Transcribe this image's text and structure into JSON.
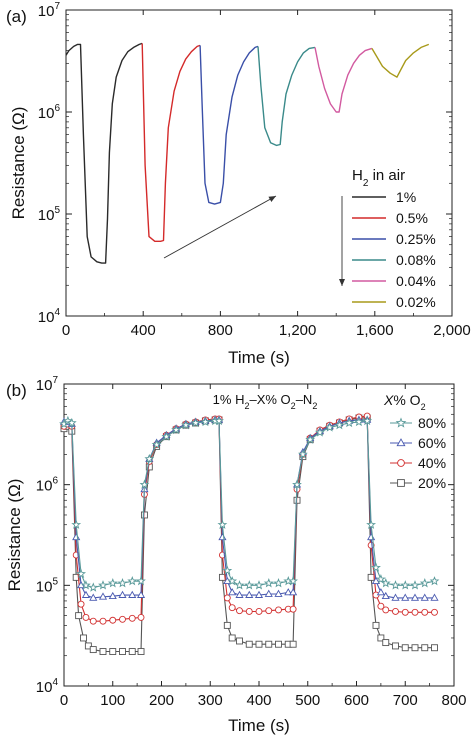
{
  "figure": {
    "background": "#ffffff",
    "text_color": "#111111"
  },
  "chart_data": [
    {
      "type": "line",
      "panel_label": "(a)",
      "xlabel": "Time (s)",
      "ylabel": "Resistance (Ω)",
      "xlim": [
        0,
        2000
      ],
      "ylim": [
        10000,
        10000000
      ],
      "yscale": "log",
      "x_ticks": [
        0,
        400,
        800,
        1200,
        1600,
        2000
      ],
      "x_tick_labels": [
        "0",
        "400",
        "800",
        "1,200",
        "1,600",
        "2,000"
      ],
      "y_ticks": [
        10000,
        100000,
        1000000,
        10000000
      ],
      "y_tick_labels": [
        {
          "base": "10",
          "exp": "4"
        },
        {
          "base": "10",
          "exp": "5"
        },
        {
          "base": "10",
          "exp": "6"
        },
        {
          "base": "10",
          "exp": "7"
        }
      ],
      "legend": {
        "title_parts": [
          "H",
          "2",
          " in air"
        ],
        "placement": "right",
        "arrow": "down"
      },
      "annotation": "diagonal arrow pointing up-right from t≈480 s to t≈1160 s",
      "series": [
        {
          "name": "1%",
          "color": "#2a2a2a",
          "x": [
            0,
            15,
            40,
            60,
            75,
            90,
            110,
            130,
            160,
            185,
            205,
            215,
            225,
            240,
            260,
            290,
            320,
            350,
            380,
            395
          ],
          "y": [
            3600000,
            4000000,
            4400000,
            4600000,
            4600000,
            600000,
            60000,
            38000,
            34000,
            33000,
            33000,
            90000,
            400000,
            1200000,
            2200000,
            3200000,
            3900000,
            4300000,
            4600000,
            4700000
          ]
        },
        {
          "name": "0.5%",
          "color": "#d42a2a",
          "x": [
            395,
            410,
            430,
            460,
            490,
            505,
            515,
            530,
            560,
            590,
            620,
            650,
            680,
            695
          ],
          "y": [
            4700000,
            300000,
            60000,
            54000,
            54000,
            55000,
            200000,
            700000,
            1600000,
            2500000,
            3300000,
            3900000,
            4400000,
            4500000
          ]
        },
        {
          "name": "0.25%",
          "color": "#3a4fa8",
          "x": [
            695,
            705,
            720,
            740,
            770,
            800,
            815,
            830,
            860,
            890,
            920,
            950,
            980,
            995
          ],
          "y": [
            4500000,
            1200000,
            200000,
            130000,
            125000,
            130000,
            200000,
            600000,
            1400000,
            2300000,
            3100000,
            3800000,
            4300000,
            4400000
          ]
        },
        {
          "name": "0.08%",
          "color": "#3a8a8a",
          "x": [
            995,
            1010,
            1030,
            1060,
            1090,
            1110,
            1120,
            1140,
            1170,
            1200,
            1230,
            1260,
            1290
          ],
          "y": [
            4400000,
            1800000,
            700000,
            500000,
            470000,
            480000,
            800000,
            1500000,
            2300000,
            3100000,
            3800000,
            4200000,
            4300000
          ]
        },
        {
          "name": "0.04%",
          "color": "#d25aa0",
          "x": [
            1290,
            1310,
            1340,
            1370,
            1400,
            1415,
            1430,
            1460,
            1490,
            1520,
            1550,
            1585
          ],
          "y": [
            4300000,
            2800000,
            1700000,
            1200000,
            1000000,
            1000000,
            1500000,
            2300000,
            3000000,
            3600000,
            4000000,
            4200000
          ]
        },
        {
          "name": "0.02%",
          "color": "#a89a1a",
          "x": [
            1585,
            1610,
            1640,
            1680,
            1715,
            1730,
            1760,
            1800,
            1840,
            1880
          ],
          "y": [
            4200000,
            3500000,
            2800000,
            2400000,
            2200000,
            2500000,
            3200000,
            3800000,
            4300000,
            4600000
          ]
        }
      ]
    },
    {
      "type": "line",
      "panel_label": "(b)",
      "xlabel": "Time (s)",
      "ylabel": "Resistance (Ω)",
      "xlim": [
        0,
        800
      ],
      "ylim": [
        10000,
        10000000
      ],
      "yscale": "log",
      "x_ticks": [
        0,
        100,
        200,
        300,
        400,
        500,
        600,
        700,
        800
      ],
      "x_tick_labels": [
        "0",
        "100",
        "200",
        "300",
        "400",
        "500",
        "600",
        "700",
        "800"
      ],
      "y_ticks": [
        10000,
        100000,
        1000000,
        10000000
      ],
      "y_tick_labels": [
        {
          "base": "10",
          "exp": "4"
        },
        {
          "base": "10",
          "exp": "5"
        },
        {
          "base": "10",
          "exp": "6"
        },
        {
          "base": "10",
          "exp": "7"
        }
      ],
      "inset_title_parts": [
        "1% H",
        "2",
        "–X% O",
        "2",
        "–N",
        "2"
      ],
      "legend": {
        "title_parts": [
          "X",
          "% O",
          "2"
        ],
        "placement": "top-right"
      },
      "series": [
        {
          "name": "80%",
          "color": "#5a9a9a",
          "marker": "star",
          "x": [
            0,
            8,
            16,
            25,
            35,
            45,
            60,
            80,
            100,
            120,
            140,
            158,
            165,
            175,
            190,
            210,
            230,
            250,
            270,
            290,
            310,
            318,
            325,
            335,
            345,
            360,
            380,
            400,
            420,
            440,
            460,
            470,
            478,
            490,
            505,
            525,
            545,
            565,
            585,
            605,
            622,
            630,
            640,
            650,
            660,
            680,
            700,
            720,
            740,
            760
          ],
          "y": [
            4000000,
            4300000,
            4100000,
            400000,
            130000,
            100000,
            95000,
            100000,
            105000,
            105000,
            110000,
            110000,
            1000000,
            1800000,
            2500000,
            3000000,
            3500000,
            3900000,
            4100000,
            4200000,
            4300000,
            4300000,
            400000,
            140000,
            110000,
            100000,
            100000,
            100000,
            105000,
            105000,
            110000,
            110000,
            1000000,
            2000000,
            2800000,
            3300000,
            3700000,
            3900000,
            4100000,
            4200000,
            4300000,
            400000,
            150000,
            115000,
            105000,
            100000,
            100000,
            100000,
            105000,
            110000
          ]
        },
        {
          "name": "60%",
          "color": "#4a5ab0",
          "marker": "triangle",
          "x": [
            0,
            8,
            16,
            25,
            35,
            45,
            60,
            80,
            100,
            120,
            140,
            158,
            165,
            175,
            190,
            210,
            230,
            250,
            270,
            290,
            310,
            318,
            325,
            335,
            345,
            360,
            380,
            400,
            420,
            440,
            460,
            470,
            478,
            490,
            505,
            525,
            545,
            565,
            585,
            605,
            622,
            630,
            640,
            650,
            660,
            680,
            700,
            720,
            740,
            760
          ],
          "y": [
            4200000,
            4200000,
            4000000,
            300000,
            100000,
            80000,
            75000,
            77000,
            78000,
            80000,
            80000,
            80000,
            900000,
            1800000,
            2600000,
            3100000,
            3600000,
            4000000,
            4200000,
            4300000,
            4400000,
            4400000,
            300000,
            110000,
            85000,
            80000,
            80000,
            80000,
            82000,
            82000,
            85000,
            85000,
            1000000,
            2100000,
            2900000,
            3400000,
            3800000,
            4100000,
            4300000,
            4400000,
            4400000,
            300000,
            110000,
            85000,
            78000,
            75000,
            75000,
            75000,
            75000,
            75000
          ]
        },
        {
          "name": "40%",
          "color": "#d23030",
          "marker": "circle",
          "x": [
            0,
            8,
            16,
            25,
            35,
            45,
            60,
            80,
            100,
            120,
            140,
            158,
            165,
            175,
            190,
            210,
            230,
            250,
            270,
            290,
            310,
            318,
            325,
            335,
            345,
            360,
            380,
            400,
            420,
            440,
            460,
            470,
            478,
            490,
            505,
            525,
            545,
            565,
            585,
            605,
            622,
            630,
            640,
            650,
            660,
            680,
            700,
            720,
            740,
            760
          ],
          "y": [
            3800000,
            4000000,
            3800000,
            200000,
            65000,
            48000,
            44000,
            44000,
            45000,
            46000,
            47000,
            48000,
            800000,
            1700000,
            2500000,
            3100000,
            3600000,
            4000000,
            4200000,
            4400000,
            4500000,
            4500000,
            200000,
            75000,
            60000,
            56000,
            55000,
            55000,
            56000,
            57000,
            58000,
            58000,
            900000,
            2000000,
            2900000,
            3500000,
            3900000,
            4200000,
            4500000,
            4700000,
            4800000,
            250000,
            80000,
            62000,
            57000,
            55000,
            54000,
            54000,
            54000,
            54000
          ]
        },
        {
          "name": "20%",
          "color": "#555555",
          "marker": "square",
          "x": [
            0,
            8,
            16,
            25,
            30,
            40,
            50,
            60,
            80,
            100,
            120,
            140,
            158,
            165,
            175,
            190,
            210,
            230,
            250,
            270,
            290,
            310,
            318,
            325,
            335,
            345,
            360,
            380,
            400,
            420,
            440,
            460,
            470,
            478,
            490,
            505,
            525,
            545,
            565,
            585,
            605,
            622,
            630,
            640,
            650,
            660,
            680,
            700,
            720,
            740,
            760
          ],
          "y": [
            3600000,
            3800000,
            3400000,
            120000,
            50000,
            30000,
            25000,
            23000,
            22000,
            22000,
            22000,
            22000,
            22000,
            500000,
            1500000,
            2400000,
            3000000,
            3500000,
            3900000,
            4100000,
            4300000,
            4400000,
            4400000,
            120000,
            40000,
            30000,
            28000,
            26000,
            26000,
            26000,
            26000,
            26000,
            26000,
            700000,
            1900000,
            2800000,
            3400000,
            3800000,
            4100000,
            4400000,
            4600000,
            4600000,
            120000,
            40000,
            30000,
            27000,
            25000,
            24000,
            24000,
            24000,
            24000
          ]
        }
      ]
    }
  ]
}
